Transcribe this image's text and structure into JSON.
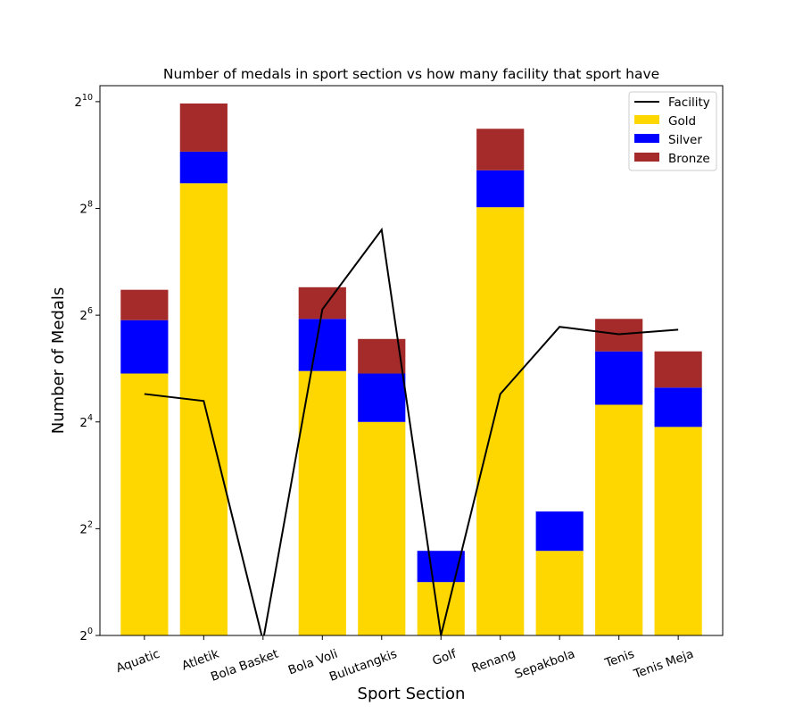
{
  "chart_data": {
    "type": "bar",
    "title": "Number of medals in sport section vs how many facility that sport have",
    "xlabel": "Sport Section",
    "ylabel": "Number of Medals",
    "yscale": "log2",
    "ylim": [
      1,
      1260
    ],
    "yticks": [
      {
        "base": "2",
        "exp": "0",
        "value": 1
      },
      {
        "base": "2",
        "exp": "2",
        "value": 4
      },
      {
        "base": "2",
        "exp": "4",
        "value": 16
      },
      {
        "base": "2",
        "exp": "6",
        "value": 64
      },
      {
        "base": "2",
        "exp": "8",
        "value": 256
      },
      {
        "base": "2",
        "exp": "10",
        "value": 1024
      }
    ],
    "categories": [
      "Aquatic",
      "Atletik",
      "Bola Basket",
      "Bola Voli",
      "Bulutangkis",
      "Golf",
      "Renang",
      "Sepakbola",
      "Tenis",
      "Tenis Meja"
    ],
    "stacking": "stacked",
    "grid": false,
    "legend_position": "top-right",
    "series": [
      {
        "name": "Gold",
        "color": "#FFD700",
        "values": [
          30,
          355,
          0,
          31,
          16,
          2,
          260,
          3,
          20,
          15
        ]
      },
      {
        "name": "Silver",
        "color": "#0000FF",
        "values": [
          30,
          180,
          0,
          30,
          14,
          1,
          160,
          2,
          20,
          10
        ]
      },
      {
        "name": "Bronze",
        "color": "#A52A2A",
        "values": [
          29,
          465,
          0,
          31,
          17,
          0,
          300,
          0,
          21,
          15
        ]
      }
    ],
    "line_series": {
      "name": "Facility",
      "color": "#000000",
      "type": "line",
      "values": [
        23,
        21,
        0,
        69,
        194,
        1,
        23,
        55,
        50,
        53
      ]
    }
  }
}
